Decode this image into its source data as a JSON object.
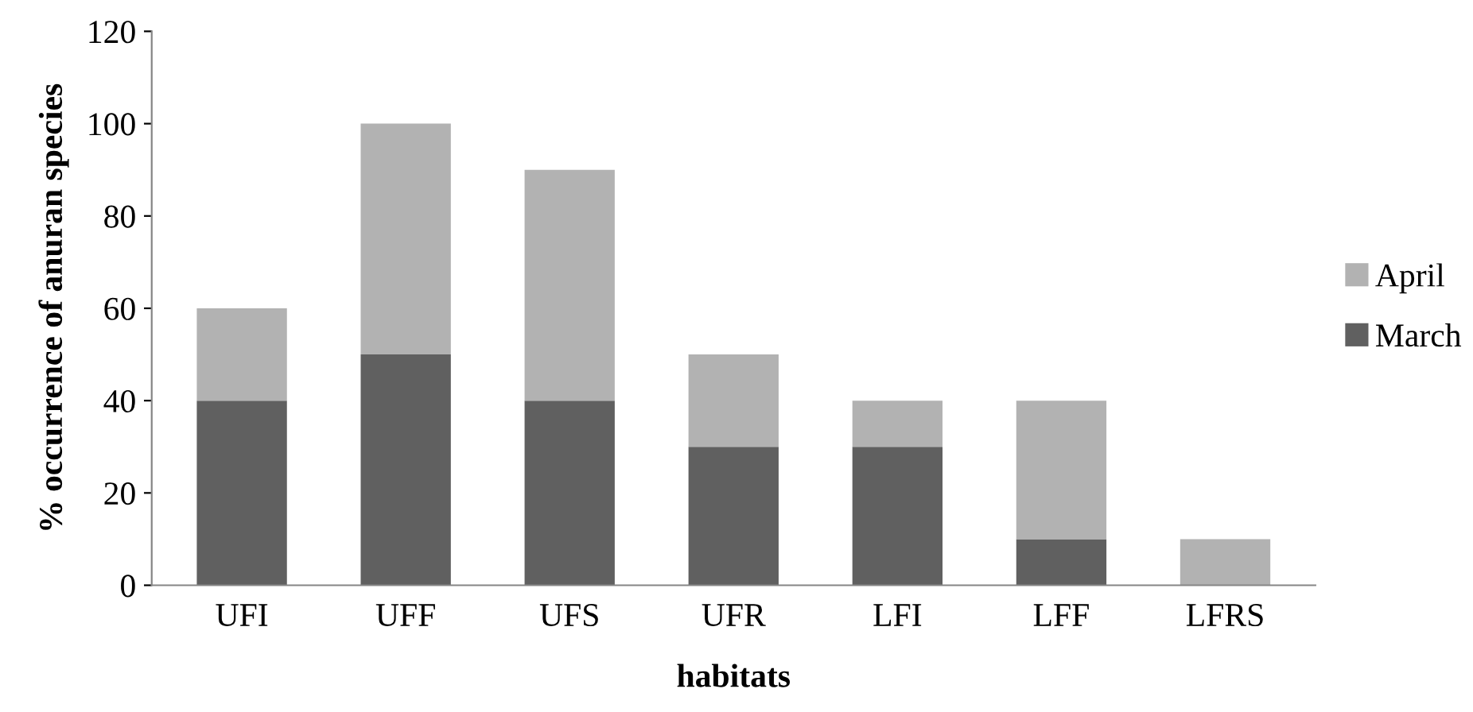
{
  "chart_data": {
    "type": "bar",
    "stacked": true,
    "xlabel": "habitats",
    "ylabel": "% occurrence of anuran species",
    "categories": [
      "UFI",
      "UFF",
      "UFS",
      "UFR",
      "LFI",
      "LFF",
      "LFRS"
    ],
    "series": [
      {
        "name": "March",
        "color": "#606060",
        "values": [
          40,
          50,
          40,
          30,
          30,
          10,
          0
        ]
      },
      {
        "name": "April",
        "color": "#b2b2b2",
        "values": [
          20,
          50,
          50,
          20,
          10,
          30,
          10
        ]
      }
    ],
    "ylim": [
      0,
      120
    ],
    "yticks": [
      0,
      20,
      40,
      60,
      80,
      100,
      120
    ],
    "grid": false,
    "legend": "right"
  }
}
